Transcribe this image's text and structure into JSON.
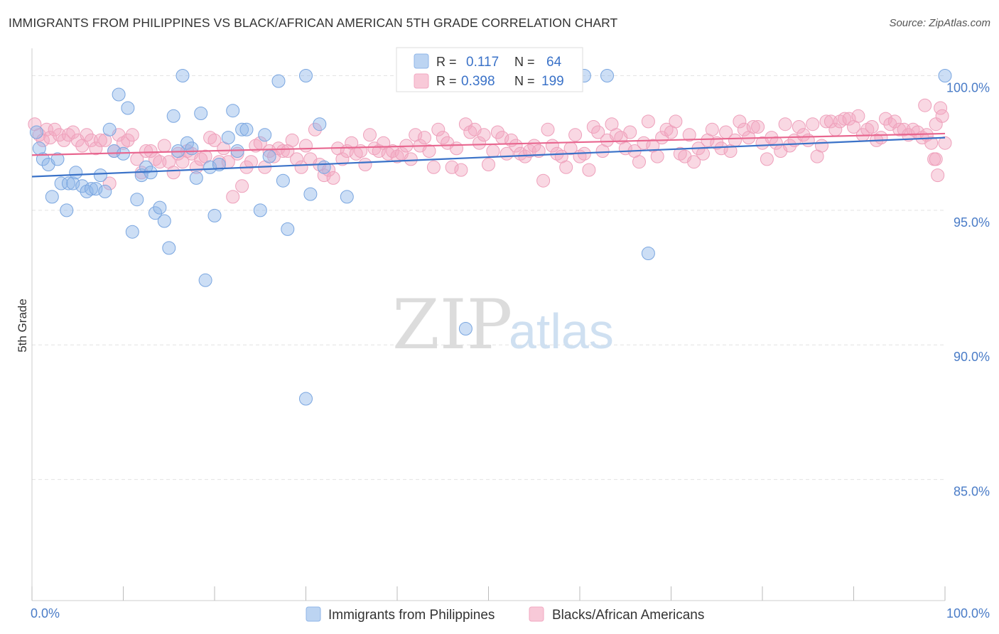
{
  "title": "IMMIGRANTS FROM PHILIPPINES VS BLACK/AFRICAN AMERICAN 5TH GRADE CORRELATION CHART",
  "source": "Source: ZipAtlas.com",
  "watermark": {
    "zip": "ZIP",
    "atlas": "atlas"
  },
  "colors": {
    "blue": "#8fb6e8",
    "blue_line": "#3a72c8",
    "pink": "#f2a9c2",
    "pink_line": "#e8668f",
    "grid": "#e3e3e3",
    "tick_text": "#4a7cc7"
  },
  "legend": {
    "rows": [
      {
        "r_label": "R =",
        "r_value": "0.117",
        "n_label": "N =",
        "n_value": "64"
      },
      {
        "r_label": "R =",
        "r_value": "0.398",
        "n_label": "N =",
        "n_value": "199"
      }
    ]
  },
  "chart_data": {
    "type": "scatter",
    "ylabel": "5th Grade",
    "x_tick_labels": [
      "0.0%",
      "100.0%"
    ],
    "y_tick_labels": [
      "100.0%",
      "95.0%",
      "90.0%",
      "85.0%"
    ],
    "xlim": [
      0,
      100
    ],
    "ylim": [
      80.5,
      100.7
    ],
    "y_ticks": [
      100,
      95,
      90,
      85
    ],
    "grid": true,
    "legend_position": "top-center",
    "series": [
      {
        "name": "Immigrants from Philippines",
        "color": "#8fb6e8",
        "r": 0.117,
        "n": 64,
        "trend": [
          [
            0,
            96.25
          ],
          [
            100,
            97.7
          ]
        ],
        "points": [
          [
            0.5,
            97.9
          ],
          [
            0.8,
            97.3
          ],
          [
            1.2,
            96.9
          ],
          [
            1.8,
            96.7
          ],
          [
            2.2,
            95.5
          ],
          [
            2.8,
            96.9
          ],
          [
            3.2,
            96.0
          ],
          [
            3.8,
            95.0
          ],
          [
            4.0,
            96.0
          ],
          [
            4.5,
            96.0
          ],
          [
            4.8,
            96.4
          ],
          [
            5.5,
            95.9
          ],
          [
            6.0,
            95.7
          ],
          [
            6.5,
            95.8
          ],
          [
            7.0,
            95.8
          ],
          [
            7.5,
            96.3
          ],
          [
            8.0,
            95.7
          ],
          [
            8.5,
            98.0
          ],
          [
            9.0,
            97.2
          ],
          [
            9.5,
            99.3
          ],
          [
            10.0,
            97.1
          ],
          [
            10.5,
            98.8
          ],
          [
            11.0,
            94.2
          ],
          [
            11.5,
            95.4
          ],
          [
            12.0,
            96.3
          ],
          [
            12.5,
            96.6
          ],
          [
            13.0,
            96.4
          ],
          [
            13.5,
            94.9
          ],
          [
            14.0,
            95.1
          ],
          [
            14.5,
            94.6
          ],
          [
            15.0,
            93.6
          ],
          [
            15.5,
            98.5
          ],
          [
            16.0,
            97.2
          ],
          [
            16.5,
            100.0
          ],
          [
            17.0,
            97.5
          ],
          [
            17.5,
            97.3
          ],
          [
            18.0,
            96.2
          ],
          [
            18.5,
            98.6
          ],
          [
            19.0,
            92.4
          ],
          [
            19.5,
            96.6
          ],
          [
            20.0,
            94.8
          ],
          [
            20.5,
            96.7
          ],
          [
            21.5,
            97.7
          ],
          [
            22.0,
            98.7
          ],
          [
            22.5,
            97.2
          ],
          [
            23.0,
            98.0
          ],
          [
            23.5,
            98.0
          ],
          [
            25.0,
            95.0
          ],
          [
            25.5,
            97.8
          ],
          [
            26.0,
            97.0
          ],
          [
            27.0,
            99.8
          ],
          [
            27.5,
            96.1
          ],
          [
            28.0,
            94.3
          ],
          [
            30.0,
            100.0
          ],
          [
            30.5,
            95.6
          ],
          [
            31.5,
            98.2
          ],
          [
            32.0,
            96.6
          ],
          [
            34.5,
            95.5
          ],
          [
            47.5,
            90.6
          ],
          [
            30.0,
            88.0
          ],
          [
            60.5,
            100.0
          ],
          [
            63.0,
            100.0
          ],
          [
            67.5,
            93.4
          ],
          [
            100.0,
            100.0
          ]
        ]
      },
      {
        "name": "Blacks/African Americans",
        "color": "#f2a9c2",
        "r": 0.398,
        "n": 199,
        "trend": [
          [
            0,
            97.05
          ],
          [
            100,
            97.85
          ]
        ],
        "points": [
          [
            0.3,
            98.2
          ],
          [
            0.8,
            97.8
          ],
          [
            1.2,
            97.6
          ],
          [
            1.6,
            98.0
          ],
          [
            2.0,
            97.7
          ],
          [
            2.5,
            98.0
          ],
          [
            3.0,
            97.8
          ],
          [
            3.5,
            97.6
          ],
          [
            4.0,
            97.8
          ],
          [
            4.5,
            97.9
          ],
          [
            5.0,
            97.6
          ],
          [
            5.5,
            97.4
          ],
          [
            6.0,
            97.8
          ],
          [
            6.5,
            97.6
          ],
          [
            7.0,
            97.3
          ],
          [
            7.5,
            97.6
          ],
          [
            8.0,
            97.6
          ],
          [
            8.5,
            96.0
          ],
          [
            9.0,
            97.2
          ],
          [
            9.5,
            97.8
          ],
          [
            10.0,
            97.5
          ],
          [
            10.5,
            97.6
          ],
          [
            11.0,
            97.8
          ],
          [
            11.5,
            96.9
          ],
          [
            12.0,
            96.4
          ],
          [
            12.5,
            97.2
          ],
          [
            13.0,
            97.2
          ],
          [
            13.5,
            96.9
          ],
          [
            14.0,
            96.8
          ],
          [
            14.5,
            97.4
          ],
          [
            15.0,
            96.8
          ],
          [
            15.5,
            96.4
          ],
          [
            16.0,
            97.1
          ],
          [
            16.5,
            96.8
          ],
          [
            17.0,
            97.2
          ],
          [
            17.5,
            97.1
          ],
          [
            18.0,
            96.6
          ],
          [
            18.5,
            96.9
          ],
          [
            19.0,
            97.0
          ],
          [
            19.5,
            97.7
          ],
          [
            20.0,
            97.6
          ],
          [
            20.5,
            96.8
          ],
          [
            21.0,
            97.3
          ],
          [
            21.5,
            96.8
          ],
          [
            22.0,
            95.5
          ],
          [
            22.5,
            97.1
          ],
          [
            23.0,
            95.9
          ],
          [
            23.5,
            96.6
          ],
          [
            24.0,
            96.8
          ],
          [
            24.5,
            97.4
          ],
          [
            25.0,
            97.5
          ],
          [
            25.5,
            96.6
          ],
          [
            26.0,
            97.2
          ],
          [
            26.5,
            97.0
          ],
          [
            27.0,
            97.3
          ],
          [
            27.5,
            97.2
          ],
          [
            28.0,
            97.2
          ],
          [
            28.5,
            97.6
          ],
          [
            29.0,
            96.9
          ],
          [
            29.5,
            96.6
          ],
          [
            30.0,
            97.4
          ],
          [
            30.5,
            96.9
          ],
          [
            31.0,
            98.0
          ],
          [
            31.5,
            96.7
          ],
          [
            32.0,
            96.3
          ],
          [
            32.5,
            96.5
          ],
          [
            33.0,
            96.2
          ],
          [
            33.5,
            97.3
          ],
          [
            34.0,
            96.9
          ],
          [
            34.5,
            97.2
          ],
          [
            35.0,
            97.5
          ],
          [
            35.5,
            97.1
          ],
          [
            36.0,
            97.2
          ],
          [
            36.5,
            96.7
          ],
          [
            37.0,
            97.8
          ],
          [
            37.5,
            97.3
          ],
          [
            38.0,
            97.2
          ],
          [
            38.5,
            97.5
          ],
          [
            39.0,
            97.1
          ],
          [
            39.5,
            97.2
          ],
          [
            40.0,
            97.0
          ],
          [
            40.5,
            97.1
          ],
          [
            41.0,
            97.4
          ],
          [
            41.5,
            96.9
          ],
          [
            42.0,
            97.8
          ],
          [
            42.5,
            97.4
          ],
          [
            43.0,
            97.7
          ],
          [
            43.5,
            97.2
          ],
          [
            44.0,
            96.6
          ],
          [
            44.5,
            98.0
          ],
          [
            45.0,
            97.7
          ],
          [
            45.5,
            97.5
          ],
          [
            46.0,
            96.6
          ],
          [
            46.5,
            97.3
          ],
          [
            47.0,
            96.5
          ],
          [
            47.5,
            98.2
          ],
          [
            48.0,
            97.9
          ],
          [
            48.5,
            98.0
          ],
          [
            49.0,
            97.5
          ],
          [
            49.5,
            97.8
          ],
          [
            50.0,
            96.7
          ],
          [
            50.5,
            97.2
          ],
          [
            51.0,
            97.9
          ],
          [
            51.5,
            97.7
          ],
          [
            52.0,
            97.1
          ],
          [
            52.5,
            97.6
          ],
          [
            53.0,
            97.4
          ],
          [
            53.5,
            97.1
          ],
          [
            54.0,
            97.0
          ],
          [
            54.5,
            97.2
          ],
          [
            55.0,
            97.4
          ],
          [
            55.5,
            97.2
          ],
          [
            56.0,
            96.1
          ],
          [
            56.5,
            98.0
          ],
          [
            57.0,
            97.4
          ],
          [
            57.5,
            97.1
          ],
          [
            58.0,
            97.0
          ],
          [
            58.5,
            96.6
          ],
          [
            59.0,
            97.3
          ],
          [
            59.5,
            97.8
          ],
          [
            60.0,
            97.0
          ],
          [
            60.5,
            97.1
          ],
          [
            61.0,
            96.5
          ],
          [
            61.5,
            98.1
          ],
          [
            62.0,
            97.9
          ],
          [
            62.5,
            97.2
          ],
          [
            63.0,
            97.6
          ],
          [
            63.5,
            98.2
          ],
          [
            64.0,
            97.8
          ],
          [
            64.5,
            97.7
          ],
          [
            65.0,
            97.3
          ],
          [
            65.5,
            97.9
          ],
          [
            66.0,
            97.2
          ],
          [
            66.5,
            96.8
          ],
          [
            67.0,
            97.5
          ],
          [
            67.5,
            98.3
          ],
          [
            68.0,
            97.4
          ],
          [
            68.5,
            97.0
          ],
          [
            69.0,
            97.7
          ],
          [
            69.5,
            98.0
          ],
          [
            70.0,
            97.9
          ],
          [
            70.5,
            98.3
          ],
          [
            71.0,
            97.1
          ],
          [
            71.5,
            97.0
          ],
          [
            72.0,
            97.8
          ],
          [
            72.5,
            96.8
          ],
          [
            73.0,
            97.3
          ],
          [
            73.5,
            97.1
          ],
          [
            74.0,
            97.6
          ],
          [
            74.5,
            98.0
          ],
          [
            75.0,
            97.5
          ],
          [
            75.5,
            97.3
          ],
          [
            76.0,
            97.9
          ],
          [
            76.5,
            97.2
          ],
          [
            77.0,
            97.6
          ],
          [
            77.5,
            98.3
          ],
          [
            78.0,
            98.0
          ],
          [
            78.5,
            97.7
          ],
          [
            79.0,
            98.1
          ],
          [
            79.5,
            98.1
          ],
          [
            80.0,
            97.5
          ],
          [
            80.5,
            96.9
          ],
          [
            81.0,
            97.7
          ],
          [
            81.5,
            97.5
          ],
          [
            82.0,
            97.2
          ],
          [
            82.5,
            98.2
          ],
          [
            83.0,
            97.4
          ],
          [
            83.5,
            97.6
          ],
          [
            84.0,
            98.1
          ],
          [
            84.5,
            97.8
          ],
          [
            85.0,
            97.6
          ],
          [
            85.5,
            98.2
          ],
          [
            86.0,
            97.0
          ],
          [
            86.5,
            97.4
          ],
          [
            87.0,
            98.3
          ],
          [
            87.5,
            98.3
          ],
          [
            88.0,
            98.0
          ],
          [
            88.5,
            98.3
          ],
          [
            89.0,
            98.4
          ],
          [
            89.5,
            98.4
          ],
          [
            90.0,
            98.1
          ],
          [
            90.5,
            98.5
          ],
          [
            91.0,
            97.8
          ],
          [
            91.5,
            98.0
          ],
          [
            92.0,
            98.1
          ],
          [
            92.5,
            97.6
          ],
          [
            93.0,
            97.7
          ],
          [
            93.5,
            98.4
          ],
          [
            94.0,
            98.2
          ],
          [
            94.5,
            98.3
          ],
          [
            95.0,
            98.0
          ],
          [
            95.5,
            98.0
          ],
          [
            96.0,
            97.8
          ],
          [
            96.5,
            98.0
          ],
          [
            97.0,
            97.9
          ],
          [
            97.5,
            97.7
          ],
          [
            98.0,
            97.8
          ],
          [
            98.5,
            97.5
          ],
          [
            99.0,
            98.2
          ],
          [
            99.5,
            98.8
          ],
          [
            100.0,
            97.5
          ],
          [
            97.8,
            98.9
          ],
          [
            98.8,
            96.9
          ],
          [
            99.2,
            96.3
          ],
          [
            99.7,
            98.5
          ],
          [
            99.0,
            96.9
          ]
        ]
      }
    ]
  }
}
